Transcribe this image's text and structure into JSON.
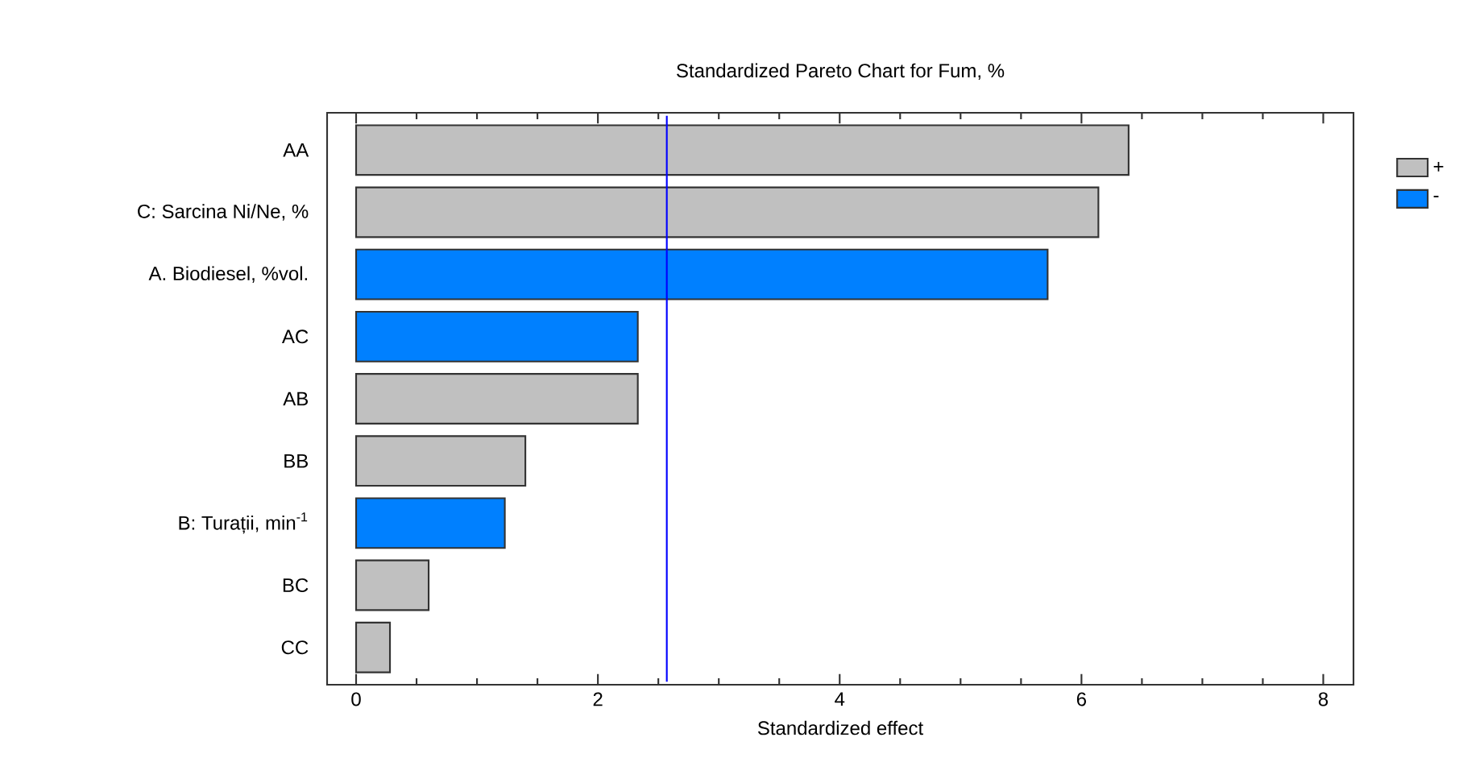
{
  "chart_data": {
    "type": "bar",
    "orientation": "horizontal",
    "title": "Standardized Pareto Chart for Fum, %",
    "xlabel": "Standardized effect",
    "categories": [
      "AA",
      "C: Sarcina Ni/Ne, %",
      "A. Biodiesel, %vol.",
      "AC",
      "AB",
      "BB",
      "B: Turații, min$^{-1}$",
      "BC",
      "CC"
    ],
    "series": [
      {
        "name": "+",
        "color": "#c0c0c0",
        "values": [
          6.39,
          6.14,
          null,
          null,
          2.33,
          1.4,
          null,
          0.6,
          0.28
        ]
      },
      {
        "name": "-",
        "color": "#0080ff",
        "values": [
          null,
          null,
          5.72,
          2.33,
          null,
          null,
          1.23,
          null,
          null
        ]
      }
    ],
    "xlim": [
      -0.24,
      8.25
    ],
    "xticks": [
      0,
      2,
      4,
      6,
      8
    ],
    "ref_lines": [
      {
        "axis": "x",
        "value": 2.57,
        "color": "#0000ff"
      }
    ],
    "legend": "right"
  }
}
